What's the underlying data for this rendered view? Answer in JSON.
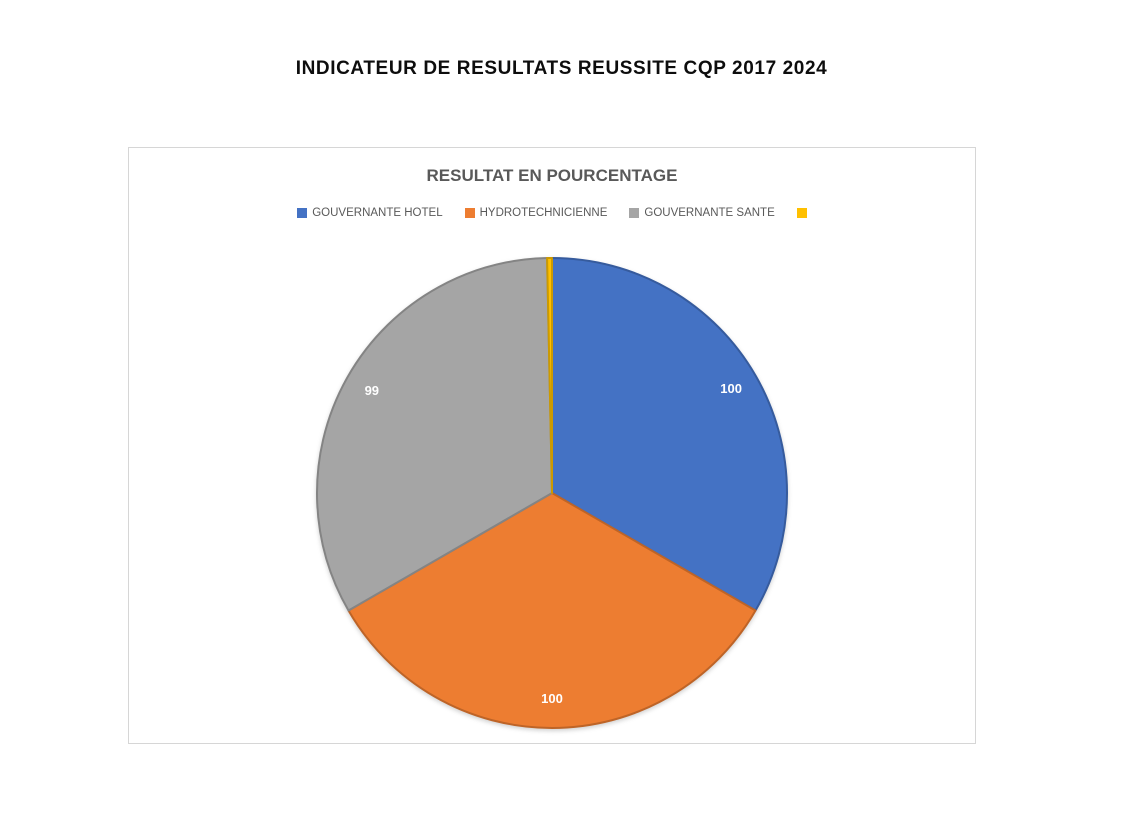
{
  "page_title": "INDICATEUR DE RESULTATS REUSSITE CQP 2017 2024",
  "chart_data": {
    "type": "pie",
    "title": "RESULTAT EN POURCENTAGE",
    "title_color": "#595959",
    "legend_position": "top",
    "legend_text_color": "#595959",
    "label_color": "#FFFFFF",
    "start_angle_deg": -90,
    "direction": "clockwise",
    "series": [
      {
        "name": "GOUVERNANTE HOTEL",
        "value": 100,
        "label": "100",
        "color": "#4472C4"
      },
      {
        "name": "HYDROTECHNICIENNE",
        "value": 100,
        "label": "100",
        "color": "#ED7D31"
      },
      {
        "name": "GOUVERNANTE SANTE",
        "value": 99,
        "label": "99",
        "color": "#A5A5A5"
      },
      {
        "name": "",
        "value": 1,
        "label": "",
        "color": "#FFC000"
      }
    ]
  }
}
